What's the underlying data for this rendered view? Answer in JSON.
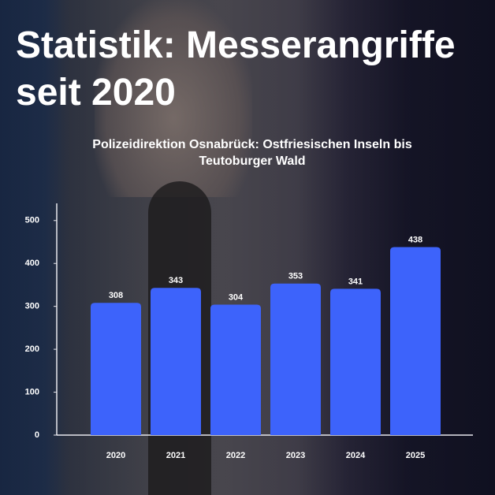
{
  "chart_data": {
    "type": "bar",
    "title": "Statistik: Messerangriffe seit 2020",
    "subtitle": "Polizeidirektion Osnabrück: Ostfriesischen Inseln bis Teutoburger Wald",
    "categories": [
      "2020",
      "2021",
      "2022",
      "2023",
      "2024",
      "2025"
    ],
    "values": [
      308,
      343,
      304,
      353,
      341,
      438
    ],
    "color": "#3d63fb",
    "ylim": [
      0,
      540
    ],
    "yticks": [
      0,
      100,
      200,
      300,
      400,
      500
    ]
  }
}
